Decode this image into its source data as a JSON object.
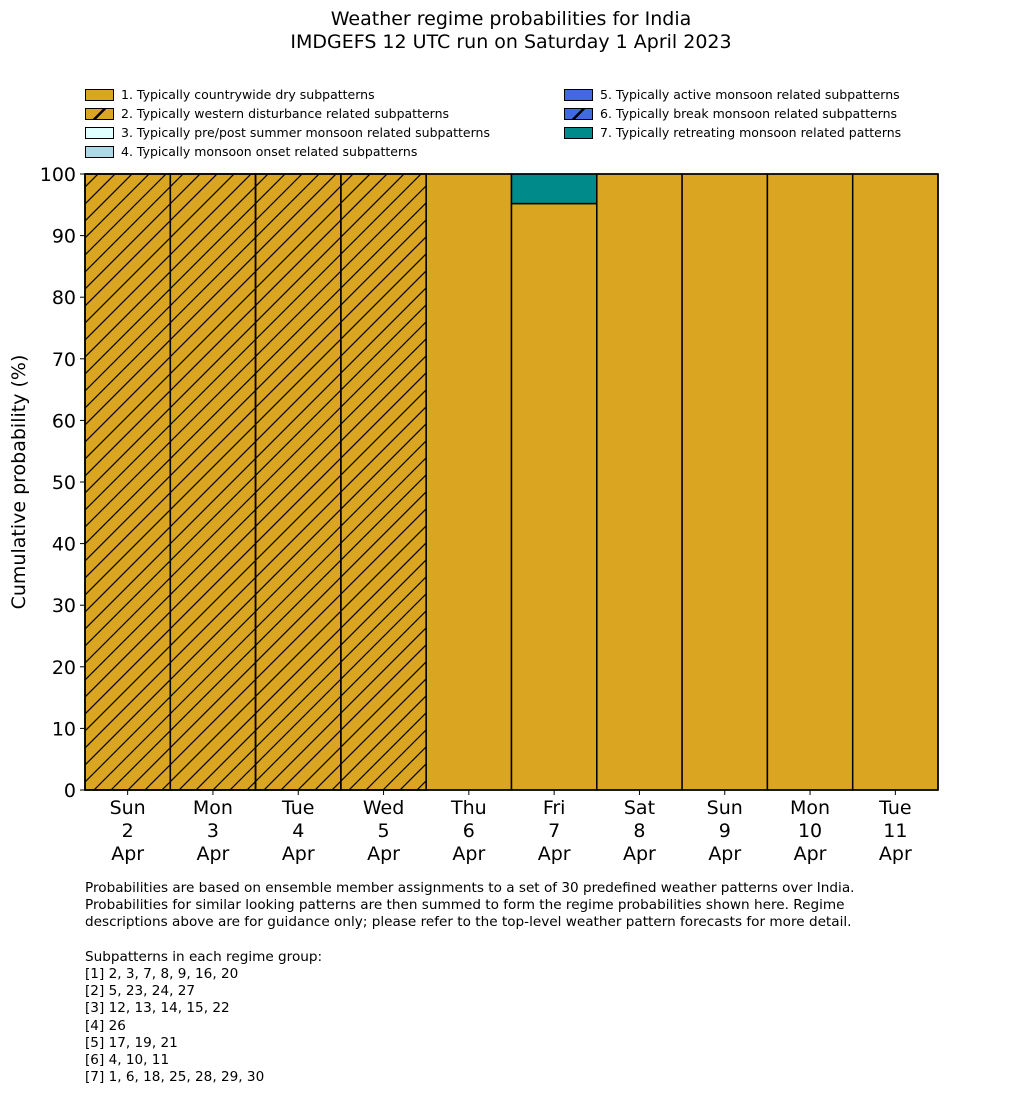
{
  "chart_data": {
    "type": "bar",
    "stacked": true,
    "title": "Weather regime probabilities for India",
    "subtitle": "IMDGEFS 12 UTC run on Saturday 1 April 2023",
    "ylabel": "Cumulative probability (%)",
    "xlabel": "",
    "ylim": [
      0,
      100
    ],
    "yticks": [
      0,
      10,
      20,
      30,
      40,
      50,
      60,
      70,
      80,
      90,
      100
    ],
    "grid": false,
    "legend_position": "top",
    "categories": [
      [
        "Sun",
        "2",
        "Apr"
      ],
      [
        "Mon",
        "3",
        "Apr"
      ],
      [
        "Tue",
        "4",
        "Apr"
      ],
      [
        "Wed",
        "5",
        "Apr"
      ],
      [
        "Thu",
        "6",
        "Apr"
      ],
      [
        "Fri",
        "7",
        "Apr"
      ],
      [
        "Sat",
        "8",
        "Apr"
      ],
      [
        "Sun",
        "9",
        "Apr"
      ],
      [
        "Mon",
        "10",
        "Apr"
      ],
      [
        "Tue",
        "11",
        "Apr"
      ]
    ],
    "series": [
      {
        "name": "1. Typically countrywide dry subpatterns",
        "color": "#DAA520",
        "hatch": false,
        "values": [
          0,
          0,
          0,
          0,
          100,
          95.2,
          100,
          100,
          100,
          100
        ]
      },
      {
        "name": "2. Typically western disturbance related subpatterns",
        "color": "#DAA520",
        "hatch": true,
        "values": [
          100,
          100,
          100,
          100,
          0,
          0,
          0,
          0,
          0,
          0
        ]
      },
      {
        "name": "3. Typically pre/post summer monsoon related subpatterns",
        "color": "#E0FFFF",
        "hatch": false,
        "values": [
          0,
          0,
          0,
          0,
          0,
          0,
          0,
          0,
          0,
          0
        ]
      },
      {
        "name": "4. Typically monsoon onset related subpatterns",
        "color": "#ADD8E6",
        "hatch": false,
        "values": [
          0,
          0,
          0,
          0,
          0,
          0,
          0,
          0,
          0,
          0
        ]
      },
      {
        "name": "5. Typically active monsoon related subpatterns",
        "color": "#4169E1",
        "hatch": false,
        "values": [
          0,
          0,
          0,
          0,
          0,
          0,
          0,
          0,
          0,
          0
        ]
      },
      {
        "name": "6. Typically break monsoon related subpatterns",
        "color": "#4169E1",
        "hatch": true,
        "values": [
          0,
          0,
          0,
          0,
          0,
          0,
          0,
          0,
          0,
          0
        ]
      },
      {
        "name": "7. Typically retreating monsoon related patterns",
        "color": "#008B8B",
        "hatch": false,
        "values": [
          0,
          0,
          0,
          0,
          0,
          4.8,
          0,
          0,
          0,
          0
        ]
      }
    ]
  },
  "notes": {
    "lines": [
      "Probabilities are based on ensemble member assignments to a set of 30 predefined weather patterns over India.",
      "Probabilities for similar looking patterns are then summed to form the regime probabilities shown here. Regime",
      "descriptions above are for guidance only; please refer to the top-level weather pattern forecasts for more detail.",
      "",
      "Subpatterns in each regime group:",
      "[1] 2, 3, 7, 8, 9, 16, 20",
      "[2] 5, 23, 24, 27",
      "[3] 12, 13, 14, 15, 22",
      "[4] 26",
      "[5] 17, 19, 21",
      "[6] 4, 10, 11",
      "[7] 1, 6, 18, 25, 28, 29, 30"
    ]
  }
}
